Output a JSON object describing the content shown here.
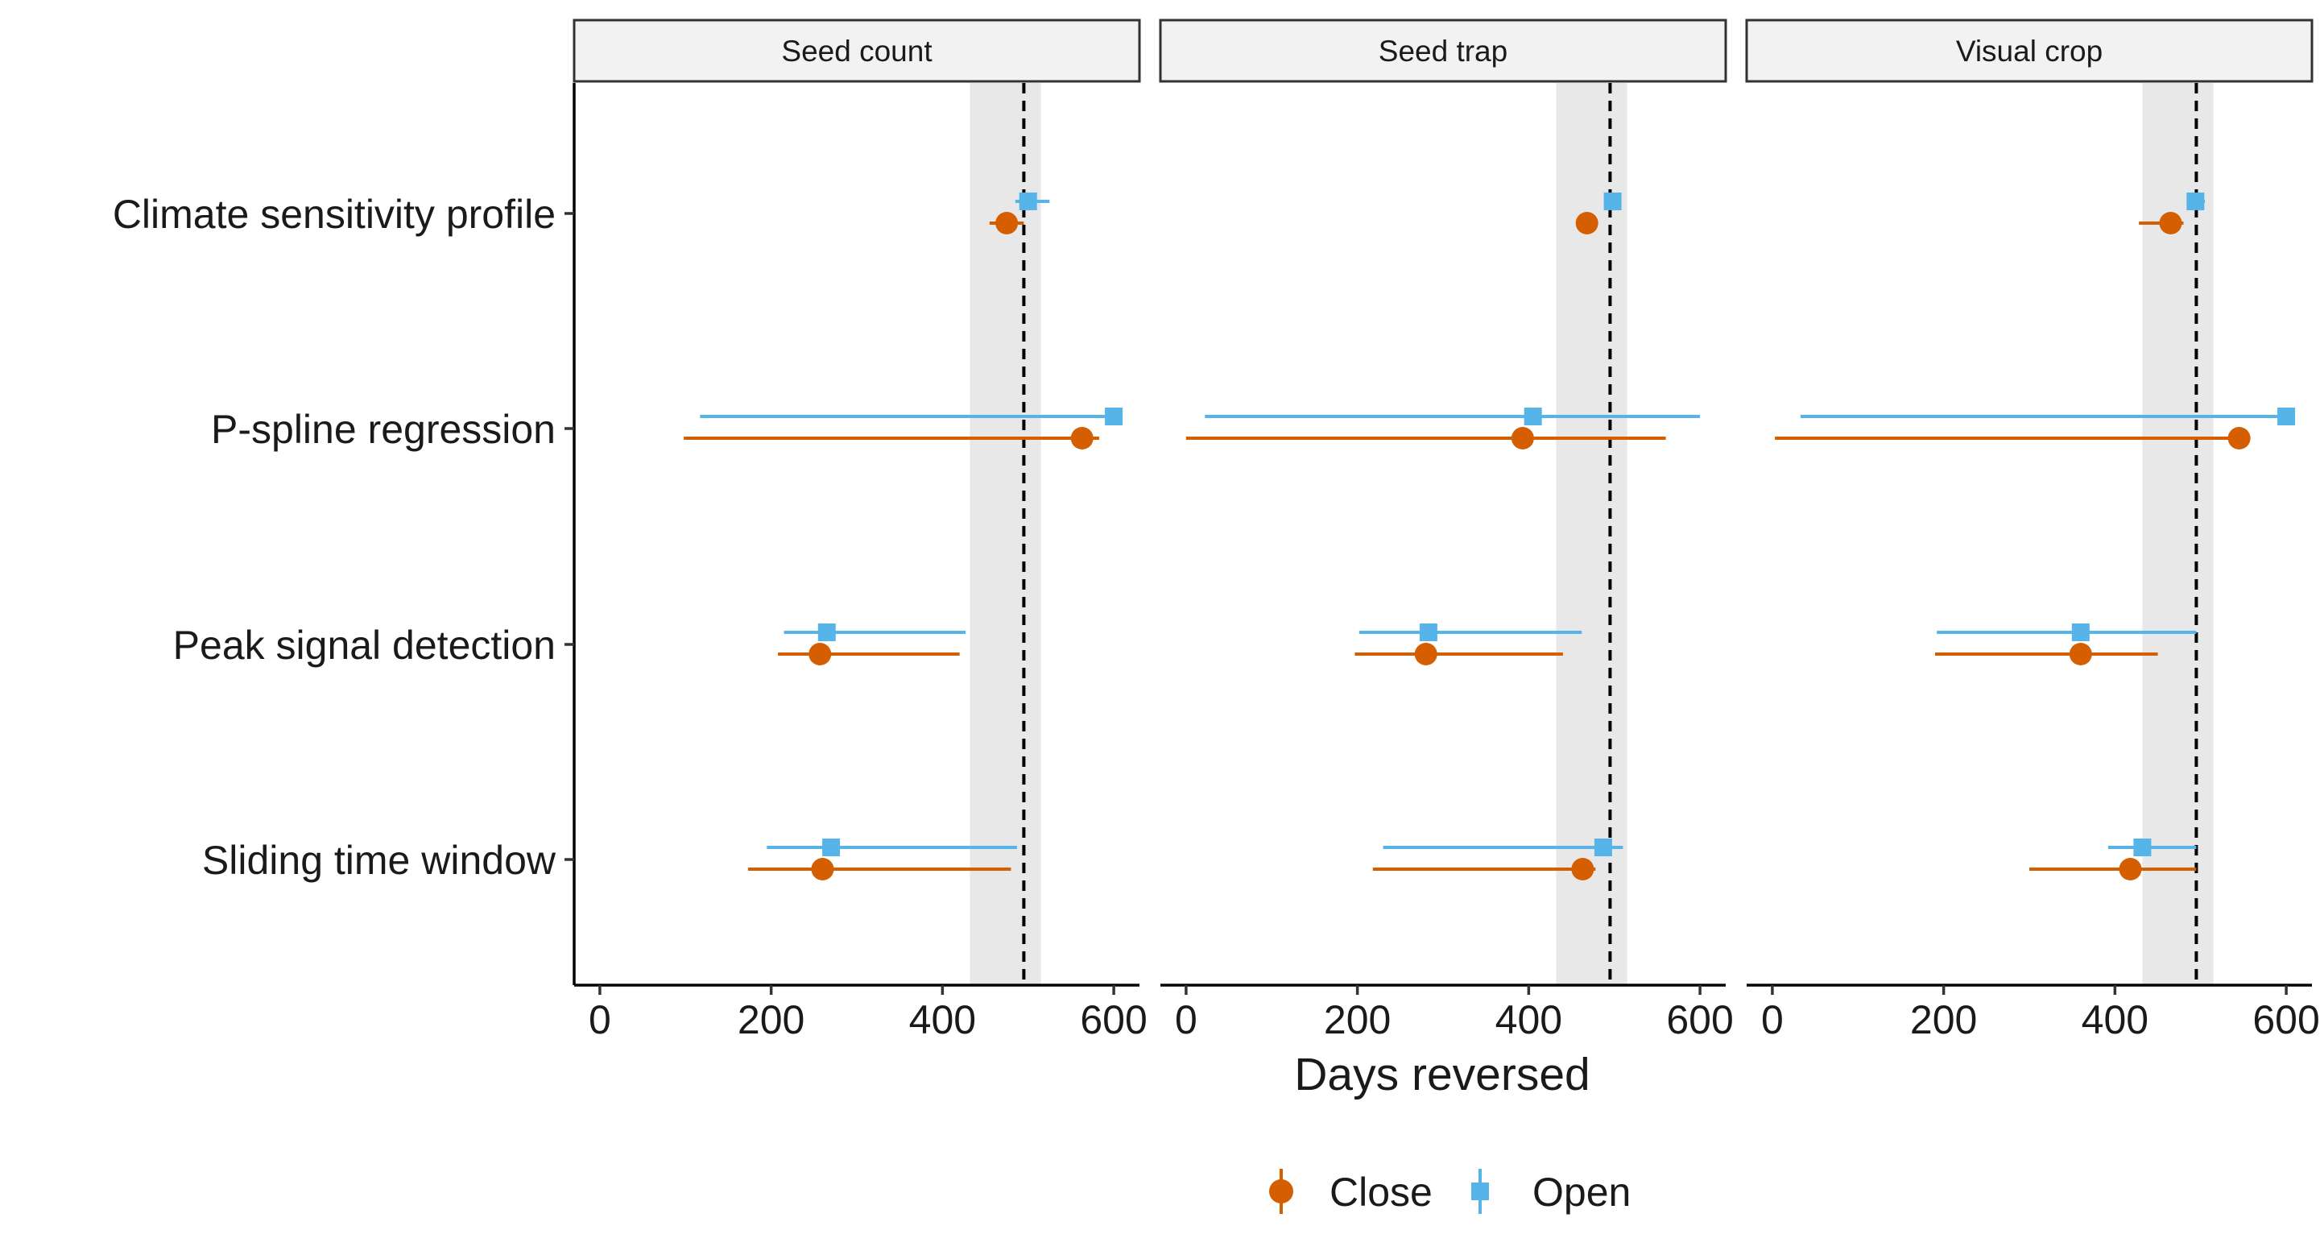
{
  "chart_data": {
    "type": "scatter",
    "subtype": "faceted dot-and-whisker plot",
    "xlabel": "Days reversed",
    "ylabel": "",
    "xlim": [
      -30,
      630
    ],
    "xticks": [
      0,
      200,
      400,
      600
    ],
    "grid": false,
    "reference": {
      "line_x": 495,
      "band": [
        432,
        515
      ],
      "line_style": "dashed"
    },
    "legend": {
      "placement": "bottom"
    },
    "methods": [
      "Climate sensitivity profile",
      "P-spline regression",
      "Peak signal detection",
      "Sliding time window"
    ],
    "series": [
      {
        "name": "Close",
        "marker": "circle",
        "color": "#D55E00"
      },
      {
        "name": "Open",
        "marker": "square",
        "color": "#56B4E9"
      }
    ],
    "facets": [
      {
        "title": "Seed count",
        "points": [
          {
            "method": "Climate sensitivity profile",
            "series": "Close",
            "x": 475,
            "lo": 455,
            "hi": 495
          },
          {
            "method": "Climate sensitivity profile",
            "series": "Open",
            "x": 500,
            "lo": 485,
            "hi": 525
          },
          {
            "method": "P-spline regression",
            "series": "Close",
            "x": 563,
            "lo": 98,
            "hi": 583
          },
          {
            "method": "P-spline regression",
            "series": "Open",
            "x": 600,
            "lo": 117,
            "hi": 610
          },
          {
            "method": "Peak signal detection",
            "series": "Close",
            "x": 257,
            "lo": 208,
            "hi": 420
          },
          {
            "method": "Peak signal detection",
            "series": "Open",
            "x": 265,
            "lo": 215,
            "hi": 427
          },
          {
            "method": "Sliding time window",
            "series": "Close",
            "x": 260,
            "lo": 173,
            "hi": 480
          },
          {
            "method": "Sliding time window",
            "series": "Open",
            "x": 270,
            "lo": 195,
            "hi": 487
          }
        ]
      },
      {
        "title": "Seed trap",
        "points": [
          {
            "method": "Climate sensitivity profile",
            "series": "Close",
            "x": 468,
            "lo": 468,
            "hi": 468
          },
          {
            "method": "Climate sensitivity profile",
            "series": "Open",
            "x": 498,
            "lo": 498,
            "hi": 498
          },
          {
            "method": "P-spline regression",
            "series": "Close",
            "x": 393,
            "lo": 0,
            "hi": 560
          },
          {
            "method": "P-spline regression",
            "series": "Open",
            "x": 405,
            "lo": 22,
            "hi": 600
          },
          {
            "method": "Peak signal detection",
            "series": "Close",
            "x": 280,
            "lo": 197,
            "hi": 440
          },
          {
            "method": "Peak signal detection",
            "series": "Open",
            "x": 283,
            "lo": 202,
            "hi": 462
          },
          {
            "method": "Sliding time window",
            "series": "Close",
            "x": 463,
            "lo": 218,
            "hi": 478
          },
          {
            "method": "Sliding time window",
            "series": "Open",
            "x": 487,
            "lo": 230,
            "hi": 510
          }
        ]
      },
      {
        "title": "Visual crop",
        "points": [
          {
            "method": "Climate sensitivity profile",
            "series": "Close",
            "x": 465,
            "lo": 428,
            "hi": 480
          },
          {
            "method": "Climate sensitivity profile",
            "series": "Open",
            "x": 494,
            "lo": 485,
            "hi": 505
          },
          {
            "method": "P-spline regression",
            "series": "Close",
            "x": 545,
            "lo": 3,
            "hi": 553
          },
          {
            "method": "P-spline regression",
            "series": "Open",
            "x": 600,
            "lo": 33,
            "hi": 605
          },
          {
            "method": "Peak signal detection",
            "series": "Close",
            "x": 360,
            "lo": 190,
            "hi": 450
          },
          {
            "method": "Peak signal detection",
            "series": "Open",
            "x": 360,
            "lo": 192,
            "hi": 495
          },
          {
            "method": "Sliding time window",
            "series": "Close",
            "x": 418,
            "lo": 300,
            "hi": 495
          },
          {
            "method": "Sliding time window",
            "series": "Open",
            "x": 432,
            "lo": 392,
            "hi": 495
          }
        ]
      }
    ]
  }
}
